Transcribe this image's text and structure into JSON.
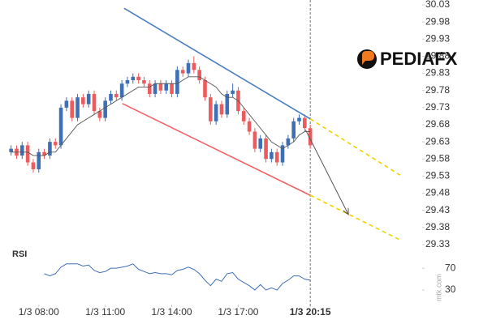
{
  "chart_data": {
    "type": "candlestick",
    "x": [
      6.75,
      7,
      7.25,
      7.5,
      7.75,
      8,
      8.25,
      8.5,
      8.75,
      9,
      9.25,
      9.5,
      9.75,
      10,
      10.25,
      10.5,
      10.75,
      11,
      11.25,
      11.5,
      11.75,
      12,
      12.25,
      12.5,
      12.75,
      13,
      13.25,
      13.5,
      13.75,
      14,
      14.25,
      14.5,
      14.75,
      15,
      15.25,
      15.5,
      15.75,
      16,
      16.25,
      16.5,
      16.75,
      17,
      17.25,
      17.5,
      17.75,
      18,
      18.25,
      18.5,
      18.75,
      19,
      19.25,
      19.5,
      19.75,
      20,
      20.25
    ],
    "open": [
      29.6,
      29.61,
      29.59,
      29.62,
      29.57,
      29.55,
      29.6,
      29.59,
      29.63,
      29.62,
      29.73,
      29.75,
      29.7,
      29.76,
      29.74,
      29.77,
      29.72,
      29.7,
      29.75,
      29.77,
      29.76,
      29.8,
      29.81,
      29.82,
      29.81,
      29.8,
      29.77,
      29.8,
      29.78,
      29.8,
      29.77,
      29.84,
      29.83,
      29.86,
      29.84,
      29.81,
      29.76,
      29.69,
      29.74,
      29.71,
      29.77,
      29.78,
      29.72,
      29.69,
      29.66,
      29.61,
      29.64,
      29.58,
      29.6,
      29.57,
      29.62,
      29.64,
      29.69,
      29.7,
      29.67
    ],
    "high": [
      29.62,
      29.62,
      29.63,
      29.63,
      29.58,
      29.61,
      29.61,
      29.64,
      29.64,
      29.74,
      29.76,
      29.76,
      29.77,
      29.77,
      29.78,
      29.78,
      29.73,
      29.76,
      29.78,
      29.78,
      29.81,
      29.82,
      29.83,
      29.83,
      29.82,
      29.81,
      29.81,
      29.81,
      29.81,
      29.81,
      29.85,
      29.85,
      29.87,
      29.88,
      29.85,
      29.82,
      29.77,
      29.75,
      29.75,
      29.78,
      29.8,
      29.79,
      29.73,
      29.7,
      29.67,
      29.65,
      29.65,
      29.61,
      29.61,
      29.63,
      29.65,
      29.7,
      29.71,
      29.71,
      29.68
    ],
    "low": [
      29.59,
      29.58,
      29.58,
      29.56,
      29.54,
      29.54,
      29.58,
      29.58,
      29.61,
      29.61,
      29.72,
      29.69,
      29.69,
      29.73,
      29.73,
      29.71,
      29.69,
      29.69,
      29.74,
      29.75,
      29.75,
      29.79,
      29.8,
      29.8,
      29.79,
      29.76,
      29.76,
      29.77,
      29.77,
      29.76,
      29.76,
      29.82,
      29.82,
      29.83,
      29.8,
      29.75,
      29.68,
      29.68,
      29.7,
      29.7,
      29.76,
      29.71,
      29.68,
      29.65,
      29.6,
      29.6,
      29.57,
      29.57,
      29.56,
      29.56,
      29.61,
      29.63,
      29.68,
      29.66,
      29.61
    ],
    "close": [
      29.61,
      29.59,
      29.62,
      29.57,
      29.55,
      29.6,
      29.59,
      29.63,
      29.62,
      29.73,
      29.75,
      29.7,
      29.76,
      29.74,
      29.77,
      29.72,
      29.7,
      29.75,
      29.77,
      29.76,
      29.8,
      29.81,
      29.82,
      29.81,
      29.8,
      29.77,
      29.8,
      29.78,
      29.8,
      29.77,
      29.84,
      29.83,
      29.86,
      29.84,
      29.81,
      29.76,
      29.69,
      29.74,
      29.71,
      29.77,
      29.78,
      29.72,
      29.69,
      29.66,
      29.61,
      29.64,
      29.58,
      29.6,
      29.57,
      29.62,
      29.64,
      29.69,
      29.7,
      29.67,
      29.62
    ],
    "ma": [
      29.6,
      29.6,
      29.6,
      29.6,
      29.59,
      29.59,
      29.59,
      29.6,
      29.6,
      29.62,
      29.64,
      29.66,
      29.68,
      29.69,
      29.7,
      29.71,
      29.72,
      29.73,
      29.74,
      29.75,
      29.76,
      29.77,
      29.78,
      29.79,
      29.79,
      29.79,
      29.8,
      29.8,
      29.8,
      29.8,
      29.8,
      29.81,
      29.82,
      29.82,
      29.82,
      29.81,
      29.8,
      29.79,
      29.77,
      29.76,
      29.76,
      29.75,
      29.73,
      29.71,
      29.69,
      29.67,
      29.65,
      29.63,
      29.62,
      29.61,
      29.62,
      29.63,
      29.65,
      29.66,
      29.66
    ],
    "up_color": "#3f6fb4",
    "down_color": "#ec5b5d",
    "ma_color": "#555555",
    "xlim": [
      6.25,
      25.3
    ],
    "xticks": [
      {
        "value": 8,
        "label": "1/3 08:00"
      },
      {
        "value": 11,
        "label": "1/3 11:00"
      },
      {
        "value": 14,
        "label": "1/3 14:00"
      },
      {
        "value": 17,
        "label": "1/3 17:00"
      },
      {
        "value": 20.25,
        "label": "1/3 20:15"
      }
    ],
    "ylim": [
      29.33,
      30.03
    ],
    "yticks": [
      30.03,
      29.98,
      29.93,
      29.88,
      29.83,
      29.78,
      29.73,
      29.68,
      29.63,
      29.58,
      29.53,
      29.48,
      29.43,
      29.38,
      29.33
    ],
    "lines": [
      {
        "color": "#4a7fbf",
        "dashed": false,
        "x": [
          11.85,
          20.25
        ],
        "y": [
          30.02,
          29.697
        ]
      },
      {
        "color": "#f2d000",
        "dashed": true,
        "x": [
          20.25,
          24.3
        ],
        "y": [
          29.697,
          29.533
        ]
      },
      {
        "color": "#f06265",
        "dashed": false,
        "x": [
          11.77,
          20.25
        ],
        "y": [
          29.742,
          29.474
        ]
      },
      {
        "color": "#f2d000",
        "dashed": true,
        "x": [
          20.25,
          24.3
        ],
        "y": [
          29.474,
          29.344
        ]
      }
    ],
    "arrow": {
      "color": "#555555",
      "x": [
        20.03,
        21.97
      ],
      "y": [
        29.666,
        29.418
      ]
    },
    "rsi": {
      "label": "RSI",
      "color": "#3f6fb4",
      "ylim": [
        0,
        100
      ],
      "yticks": [
        70,
        30
      ],
      "values": [
        null,
        null,
        null,
        null,
        null,
        null,
        60,
        56,
        60,
        72,
        78,
        78,
        78,
        74,
        76,
        66,
        62,
        64,
        70,
        70,
        72,
        74,
        78,
        68,
        64,
        60,
        62,
        60,
        60,
        58,
        66,
        68,
        72,
        68,
        60,
        48,
        38,
        50,
        46,
        60,
        62,
        50,
        44,
        38,
        30,
        40,
        30,
        34,
        30,
        42,
        48,
        56,
        56,
        50,
        48
      ]
    },
    "logo": "PEDIAFX",
    "watermark": "mtk.com"
  }
}
